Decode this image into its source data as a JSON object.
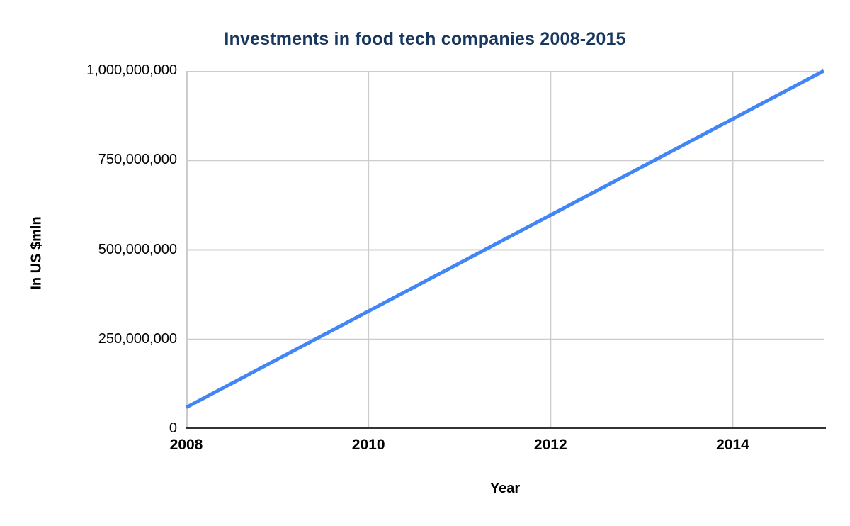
{
  "chart": {
    "title": "Investments in food tech companies 2008-2015",
    "x_axis_title": "Year",
    "y_axis_title": "In US $mln",
    "colors": {
      "title": "#17375e",
      "line": "#4285f4",
      "gridline": "#cccccc",
      "baseline": "#333333",
      "tick_text": "#000000",
      "background": "#ffffff"
    }
  },
  "chart_data": {
    "type": "line",
    "title": "Investments in food tech companies 2008-2015",
    "xlabel": "Year",
    "ylabel": "In US $mln",
    "series": [
      {
        "name": "Investments",
        "x": [
          2008,
          2015
        ],
        "y": [
          60000000,
          1000000000
        ]
      }
    ],
    "shape": "single straight line segment from (2008, ~60,000,000) to (2015, 1,000,000,000)",
    "xlim": [
      2008,
      2015
    ],
    "ylim": [
      0,
      1000000000
    ],
    "x_ticks": [
      2008,
      2010,
      2012,
      2014
    ],
    "x_gridline_years": [
      2010,
      2012,
      2014
    ],
    "y_ticks": [
      0,
      250000000,
      500000000,
      750000000,
      1000000000
    ],
    "y_tick_labels": [
      "0",
      "250,000,000",
      "500,000,000",
      "750,000,000",
      "1,000,000,000"
    ],
    "grid": true,
    "legend": false
  }
}
